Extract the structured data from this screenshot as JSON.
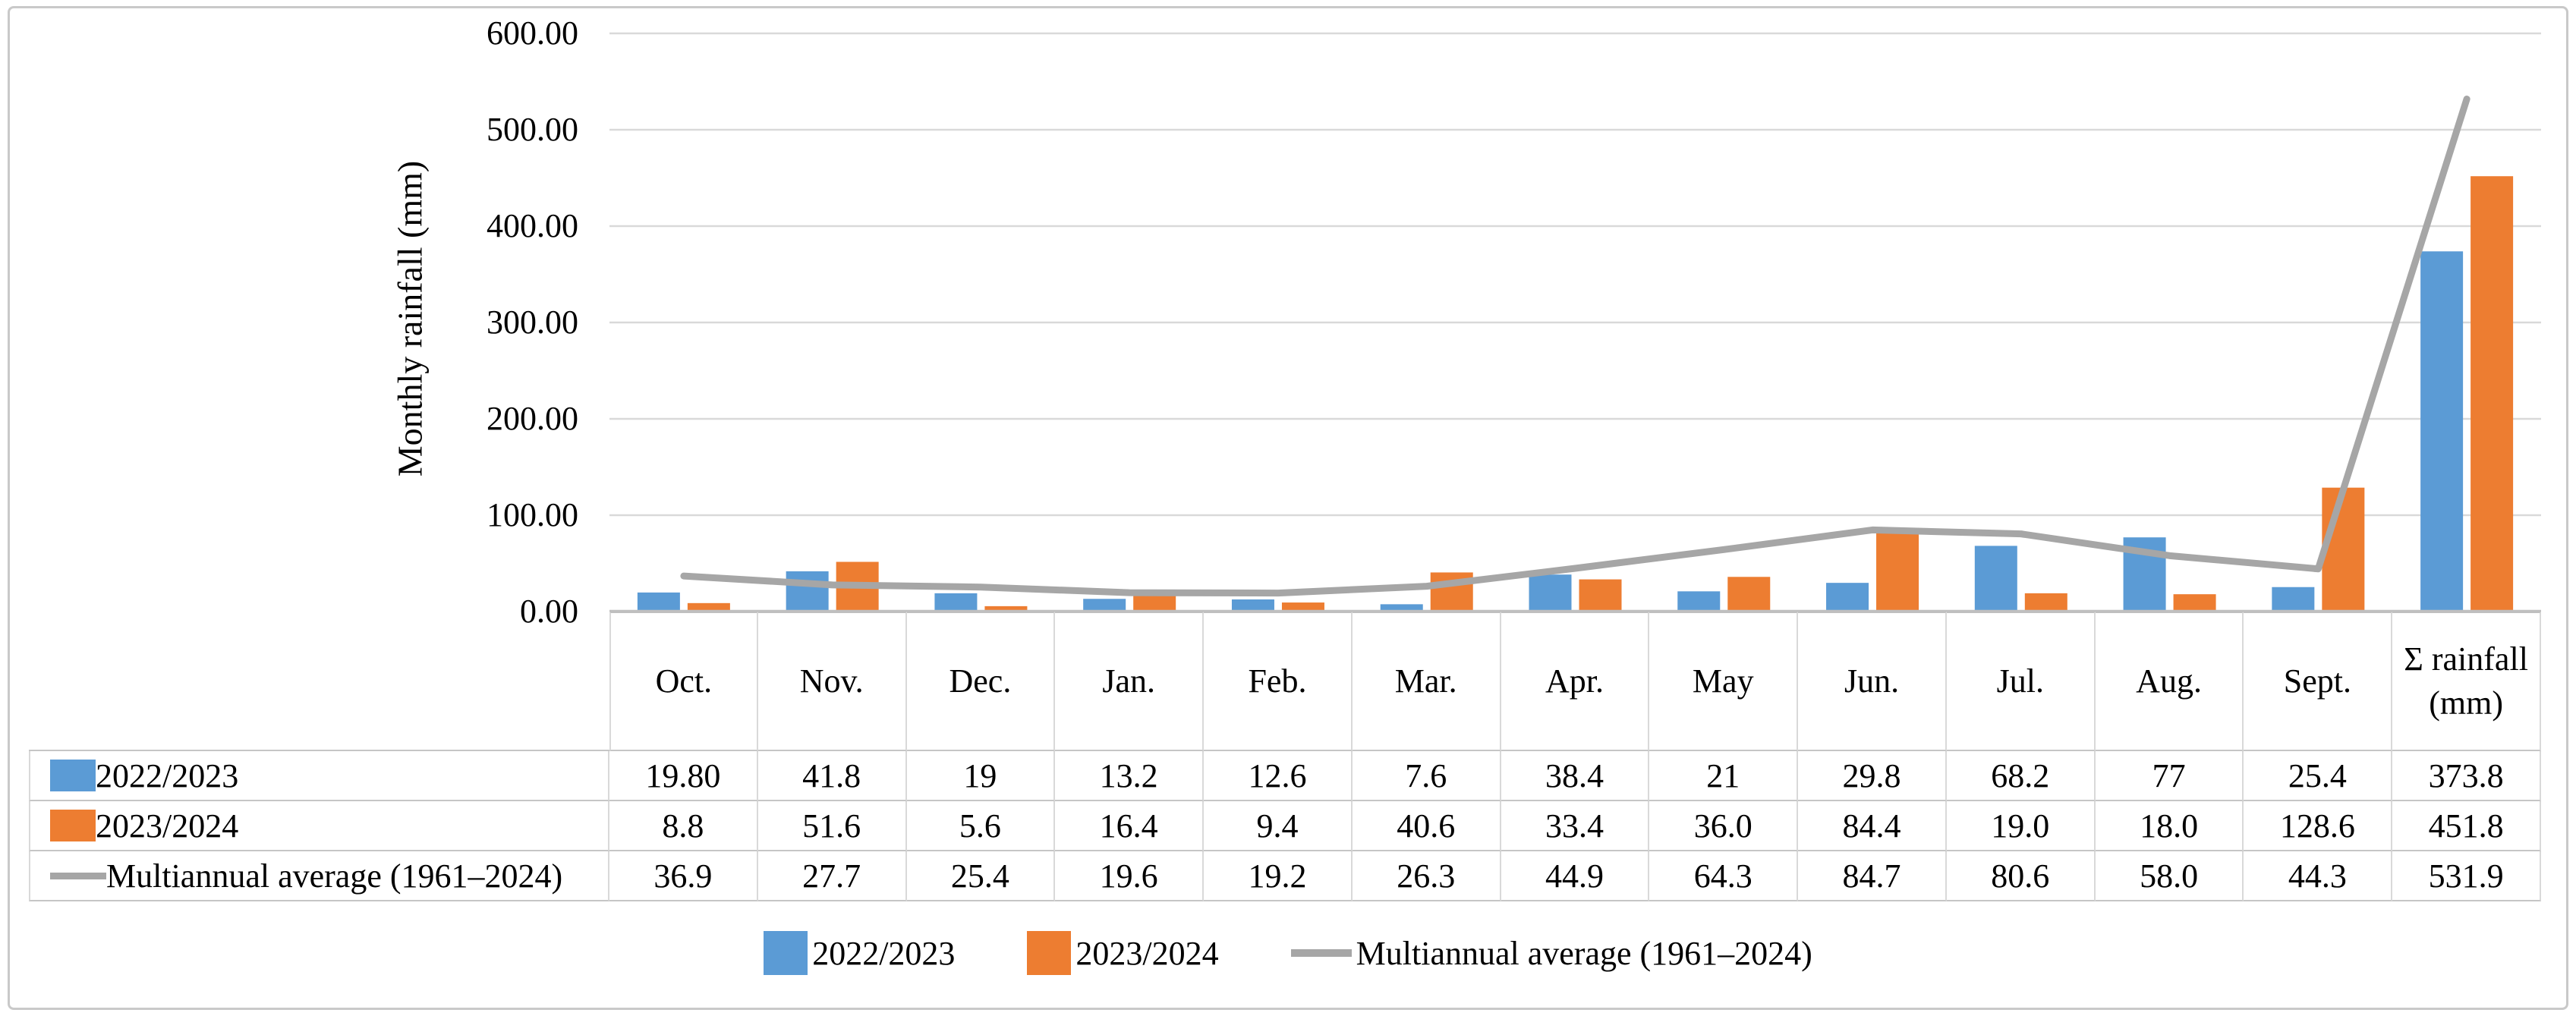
{
  "figure": {
    "border_color": "#c9c9c9",
    "background": "#ffffff"
  },
  "colors": {
    "series_2022_2023": "#5B9BD5",
    "series_2023_2024": "#ED7D31",
    "average_line": "#A6A6A6",
    "gridline": "#D9D9D9",
    "axis_line": "#BFBFBF",
    "table_border_h": "#C6C6C6",
    "table_border_v": "#D9D9D9",
    "text": "#000000"
  },
  "chart_data": {
    "type": "bar",
    "subtype": "grouped bars with overlay line and attached data table",
    "title": "",
    "xlabel": "",
    "ylabel": "Monthly rainfall (mm)",
    "ylim": [
      0,
      600
    ],
    "ytick_step": 100,
    "ytick_labels": [
      "600.00",
      "500.00",
      "400.00",
      "300.00",
      "200.00",
      "100.00",
      "0.00"
    ],
    "grid": true,
    "legend_position": "bottom",
    "categories": [
      "Oct.",
      "Nov.",
      "Dec.",
      "Jan.",
      "Feb.",
      "Mar.",
      "Apr.",
      "May",
      "Jun.",
      "Jul.",
      "Aug.",
      "Sept.",
      "Σ rainfall (mm)"
    ],
    "series": [
      {
        "name": "2022/2023",
        "type": "bar",
        "color": "#5B9BD5",
        "values": [
          19.8,
          41.8,
          19,
          13.2,
          12.6,
          7.6,
          38.4,
          21,
          29.8,
          68.2,
          77,
          25.4,
          373.8
        ],
        "labels": [
          "19.80",
          "41.8",
          "19",
          "13.2",
          "12.6",
          "7.6",
          "38.4",
          "21",
          "29.8",
          "68.2",
          "77",
          "25.4",
          "373.8"
        ]
      },
      {
        "name": "2023/2024",
        "type": "bar",
        "color": "#ED7D31",
        "values": [
          8.8,
          51.6,
          5.6,
          16.4,
          9.4,
          40.6,
          33.4,
          36.0,
          84.4,
          19.0,
          18.0,
          128.6,
          451.8
        ],
        "labels": [
          "8.8",
          "51.6",
          "5.6",
          "16.4",
          "9.4",
          "40.6",
          "33.4",
          "36.0",
          "84.4",
          "19.0",
          "18.0",
          "128.6",
          "451.8"
        ]
      },
      {
        "name": "Multiannual average (1961–2024)",
        "type": "line",
        "color": "#A6A6A6",
        "values": [
          36.9,
          27.7,
          25.4,
          19.6,
          19.2,
          26.3,
          44.9,
          64.3,
          84.7,
          80.6,
          58.0,
          44.3,
          531.9
        ],
        "labels": [
          "36.9",
          "27.7",
          "25.4",
          "19.6",
          "19.2",
          "26.3",
          "44.9",
          "64.3",
          "84.7",
          "80.6",
          "58.0",
          "44.3",
          "531.9"
        ]
      }
    ]
  },
  "legend": {
    "items": [
      {
        "label": "2022/2023",
        "marker": "square",
        "color": "#5B9BD5"
      },
      {
        "label": "2023/2024",
        "marker": "square",
        "color": "#ED7D31"
      },
      {
        "label": "Multiannual average (1961–2024)",
        "marker": "line",
        "color": "#A6A6A6"
      }
    ]
  }
}
